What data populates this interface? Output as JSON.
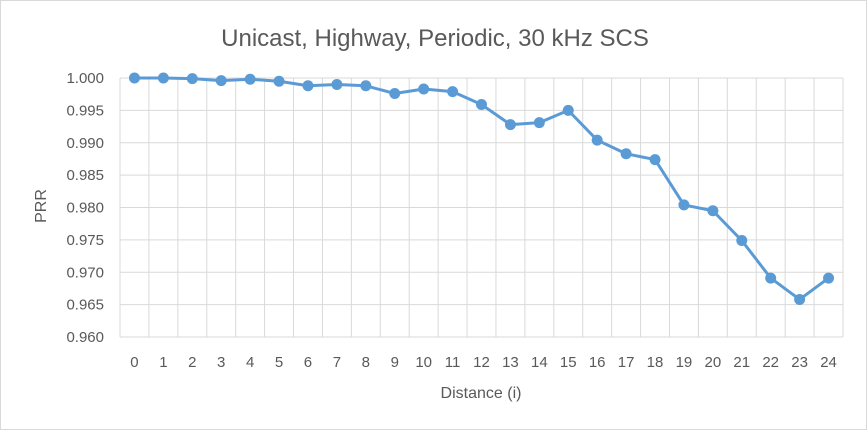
{
  "chart_data": {
    "type": "line",
    "title": "Unicast, Highway, Periodic, 30 kHz SCS",
    "xlabel": "Distance (i)",
    "ylabel": "PRR",
    "categories": [
      "0",
      "1",
      "2",
      "3",
      "4",
      "5",
      "6",
      "7",
      "8",
      "9",
      "10",
      "11",
      "12",
      "13",
      "14",
      "15",
      "16",
      "17",
      "18",
      "19",
      "20",
      "21",
      "22",
      "23",
      "24"
    ],
    "series": [
      {
        "values": [
          1.0,
          1.0,
          0.9999,
          0.9996,
          0.9998,
          0.9995,
          0.9988,
          0.999,
          0.9988,
          0.9976,
          0.9983,
          0.9979,
          0.9959,
          0.9928,
          0.9931,
          0.995,
          0.9904,
          0.9883,
          0.9874,
          0.9804,
          0.9795,
          0.9749,
          0.9691,
          0.9658,
          0.9691
        ]
      }
    ],
    "ylim": [
      0.96,
      1.0
    ],
    "yticks": [
      "0.960",
      "0.965",
      "0.970",
      "0.975",
      "0.980",
      "0.985",
      "0.990",
      "0.995",
      "1.000"
    ],
    "grid": true,
    "legend": "none",
    "colors": {
      "line": "#5b9bd5",
      "grid": "#d9d9d9",
      "text": "#595959"
    }
  }
}
